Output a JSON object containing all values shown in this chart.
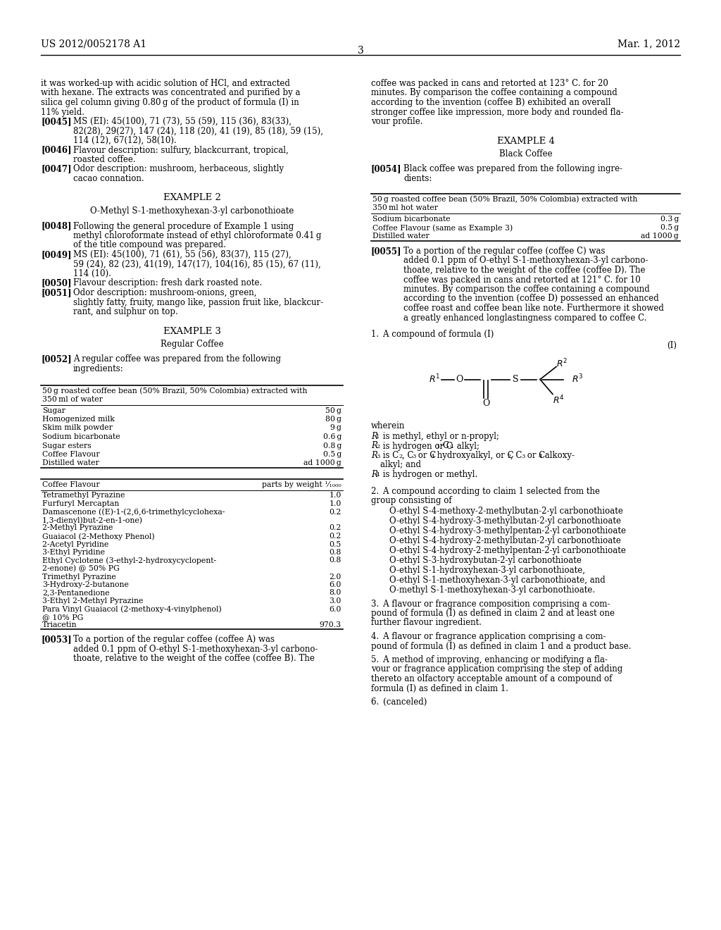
{
  "page_header_left": "US 2012/0052178 A1",
  "page_header_right": "Mar. 1, 2012",
  "page_number": "3",
  "bg_color": "#ffffff"
}
